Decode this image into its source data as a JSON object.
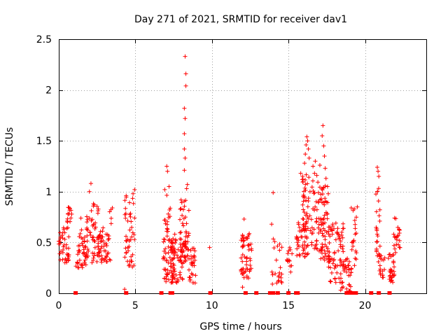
{
  "chart_data": {
    "type": "scatter",
    "title": "Day 271 of 2021, SRMTID for receiver dav1",
    "xlabel": "GPS time / hours",
    "ylabel": "SRMTID / TECUs",
    "xlim": [
      0,
      24
    ],
    "ylim": [
      0,
      2.5
    ],
    "xticks": [
      0,
      5,
      10,
      15,
      20
    ],
    "yticks": [
      0,
      0.5,
      1,
      1.5,
      2,
      2.5
    ],
    "xtick_labels": [
      "0",
      "5",
      "10",
      "15",
      "20"
    ],
    "ytick_labels": [
      "0",
      "0.5",
      "1",
      "1.5",
      "2",
      "2.5"
    ],
    "grid": true,
    "marker": "+",
    "series_color": "#ff0000",
    "clusters": [
      {
        "x_start": 0.0,
        "x_end": 0.7,
        "y_min": 0.3,
        "y_max": 0.65,
        "n": 40
      },
      {
        "x_start": 0.5,
        "x_end": 0.85,
        "y_min": 0.7,
        "y_max": 0.85,
        "n": 14
      },
      {
        "x_start": 1.1,
        "x_end": 1.9,
        "y_min": 0.25,
        "y_max": 0.75,
        "n": 45
      },
      {
        "x_start": 1.8,
        "x_end": 2.6,
        "y_min": 0.3,
        "y_max": 0.9,
        "n": 50
      },
      {
        "x_start": 2.5,
        "x_end": 3.4,
        "y_min": 0.3,
        "y_max": 0.65,
        "n": 50
      },
      {
        "x_start": 3.3,
        "x_end": 3.5,
        "y_min": 0.65,
        "y_max": 0.85,
        "n": 5
      },
      {
        "x_start": 4.3,
        "x_end": 4.95,
        "y_min": 0.25,
        "y_max": 0.95,
        "n": 45
      },
      {
        "x_start": 6.8,
        "x_end": 7.6,
        "y_min": 0.1,
        "y_max": 0.6,
        "n": 55
      },
      {
        "x_start": 6.9,
        "x_end": 7.3,
        "y_min": 0.6,
        "y_max": 1.05,
        "n": 16
      },
      {
        "x_start": 7.3,
        "x_end": 8.1,
        "y_min": 0.1,
        "y_max": 0.55,
        "n": 55
      },
      {
        "x_start": 7.9,
        "x_end": 8.5,
        "y_min": 0.3,
        "y_max": 0.95,
        "n": 55
      },
      {
        "x_start": 8.5,
        "x_end": 8.95,
        "y_min": 0.1,
        "y_max": 0.45,
        "n": 30
      },
      {
        "x_start": 11.9,
        "x_end": 12.6,
        "y_min": 0.15,
        "y_max": 0.6,
        "n": 55
      },
      {
        "x_start": 13.9,
        "x_end": 14.6,
        "y_min": 0.1,
        "y_max": 0.55,
        "n": 22
      },
      {
        "x_start": 14.9,
        "x_end": 15.25,
        "y_min": 0.15,
        "y_max": 0.45,
        "n": 14
      },
      {
        "x_start": 15.5,
        "x_end": 16.3,
        "y_min": 0.35,
        "y_max": 0.7,
        "n": 45
      },
      {
        "x_start": 15.9,
        "x_end": 16.6,
        "y_min": 0.6,
        "y_max": 1.2,
        "n": 45
      },
      {
        "x_start": 16.5,
        "x_end": 17.4,
        "y_min": 0.4,
        "y_max": 1.1,
        "n": 60
      },
      {
        "x_start": 17.1,
        "x_end": 17.7,
        "y_min": 0.3,
        "y_max": 0.9,
        "n": 40
      },
      {
        "x_start": 17.6,
        "x_end": 18.6,
        "y_min": 0.1,
        "y_max": 0.7,
        "n": 65
      },
      {
        "x_start": 18.4,
        "x_end": 19.1,
        "y_min": 0.02,
        "y_max": 0.35,
        "n": 40
      },
      {
        "x_start": 19.1,
        "x_end": 19.5,
        "y_min": 0.2,
        "y_max": 0.85,
        "n": 20
      },
      {
        "x_start": 20.7,
        "x_end": 21.0,
        "y_min": 0.3,
        "y_max": 1.05,
        "n": 25
      },
      {
        "x_start": 20.95,
        "x_end": 21.3,
        "y_min": 0.15,
        "y_max": 0.4,
        "n": 16
      },
      {
        "x_start": 21.5,
        "x_end": 21.95,
        "y_min": 0.1,
        "y_max": 0.4,
        "n": 30
      },
      {
        "x_start": 21.8,
        "x_end": 22.3,
        "y_min": 0.4,
        "y_max": 0.75,
        "n": 22
      }
    ],
    "points": [
      [
        2.1,
        1.08
      ],
      [
        2.0,
        1.0
      ],
      [
        4.95,
        1.02
      ],
      [
        4.85,
        0.98
      ],
      [
        4.4,
        0.96
      ],
      [
        7.05,
        1.25
      ],
      [
        7.1,
        1.2
      ],
      [
        7.2,
        1.05
      ],
      [
        8.25,
        2.33
      ],
      [
        8.3,
        2.16
      ],
      [
        8.3,
        2.04
      ],
      [
        8.2,
        1.82
      ],
      [
        8.25,
        1.72
      ],
      [
        8.2,
        1.57
      ],
      [
        8.2,
        1.42
      ],
      [
        8.25,
        1.33
      ],
      [
        8.2,
        1.21
      ],
      [
        8.4,
        1.07
      ],
      [
        8.35,
        1.03
      ],
      [
        9.85,
        0.45
      ],
      [
        12.1,
        0.73
      ],
      [
        12.0,
        0.06
      ],
      [
        14.0,
        0.99
      ],
      [
        13.9,
        0.68
      ],
      [
        13.95,
        0.09
      ],
      [
        15.8,
        1.18
      ],
      [
        15.9,
        1.12
      ],
      [
        16.05,
        1.28
      ],
      [
        16.1,
        1.37
      ],
      [
        16.15,
        1.46
      ],
      [
        16.2,
        1.54
      ],
      [
        16.25,
        1.5
      ],
      [
        16.3,
        1.42
      ],
      [
        16.35,
        1.33
      ],
      [
        16.6,
        1.25
      ],
      [
        16.7,
        1.18
      ],
      [
        16.75,
        1.3
      ],
      [
        16.85,
        1.16
      ],
      [
        17.05,
        1.26
      ],
      [
        17.25,
        1.65
      ],
      [
        17.2,
        1.55
      ],
      [
        17.3,
        1.45
      ],
      [
        17.35,
        1.35
      ],
      [
        17.4,
        1.23
      ],
      [
        17.45,
        1.13
      ],
      [
        17.55,
        1.05
      ],
      [
        17.6,
        0.98
      ],
      [
        19.1,
        0.84
      ],
      [
        19.3,
        0.83
      ],
      [
        20.8,
        1.24
      ],
      [
        20.85,
        1.2
      ],
      [
        20.9,
        1.15
      ],
      [
        4.3,
        0.04
      ]
    ],
    "zero_points_x": [
      1.1,
      4.4,
      6.7,
      7.3,
      7.4,
      9.9,
      12.2,
      12.9,
      13.8,
      14.0,
      14.3,
      15.0,
      15.5,
      15.6,
      18.8,
      19.0,
      19.2,
      19.4,
      20.4,
      20.9,
      21.6
    ]
  }
}
